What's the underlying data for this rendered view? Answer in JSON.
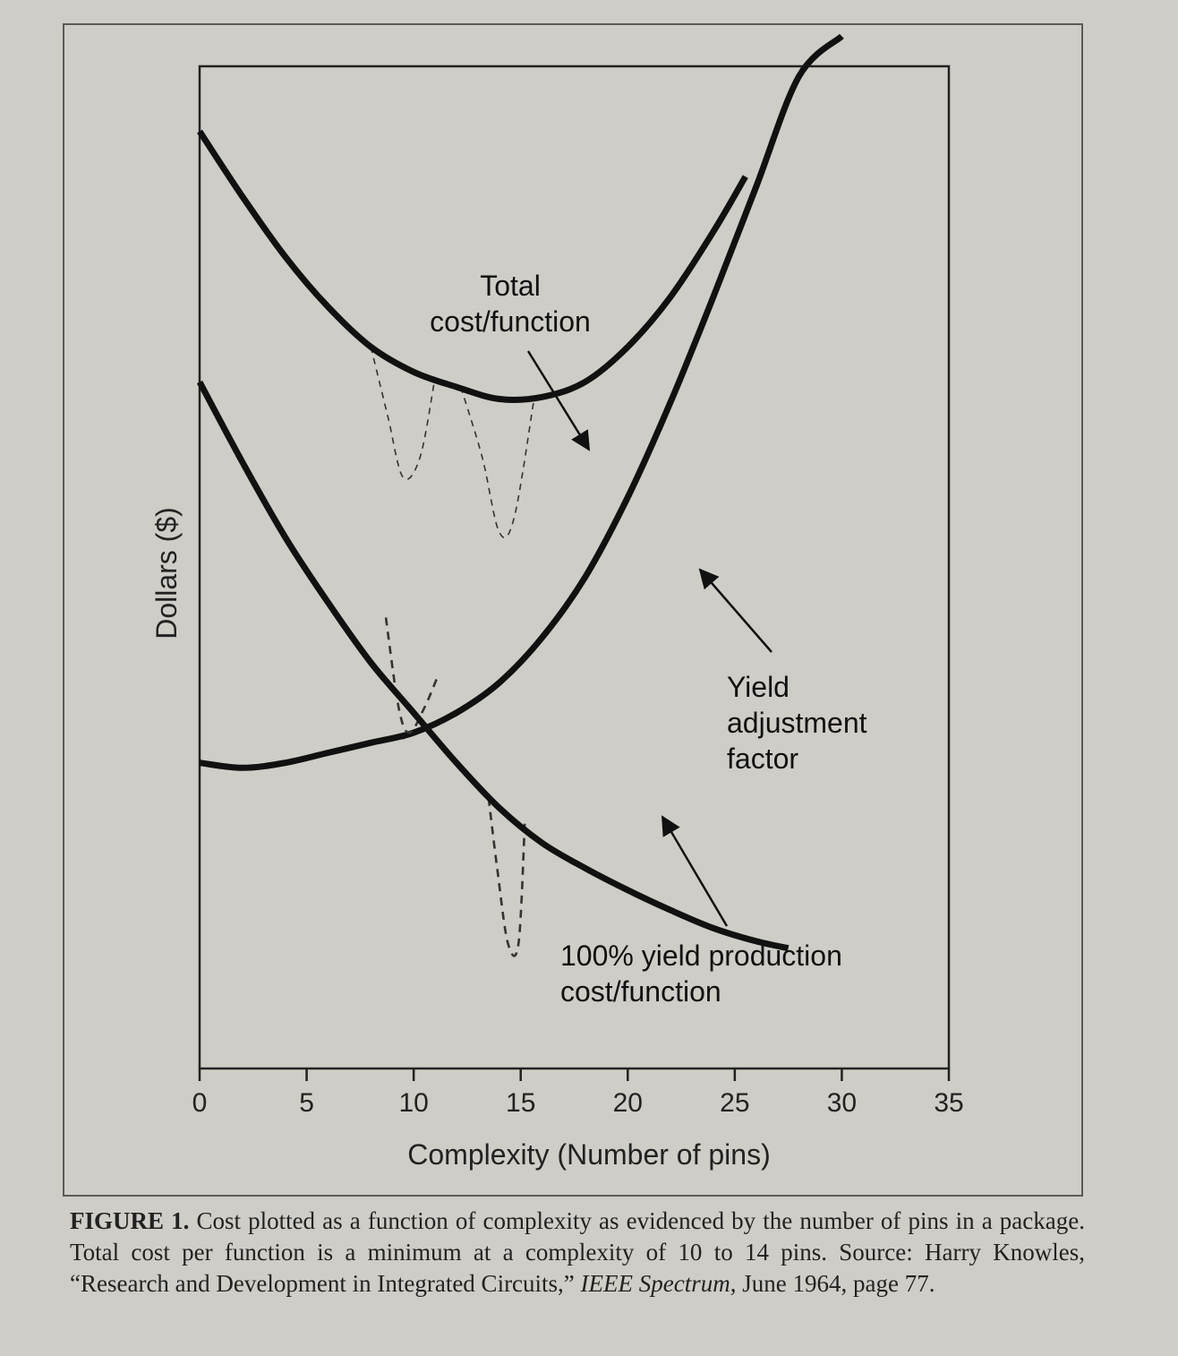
{
  "chart_data": {
    "type": "line",
    "xlabel": "Complexity (Number of pins)",
    "ylabel": "Dollars ($)",
    "xlim": [
      0,
      35
    ],
    "ylim": [
      0,
      10
    ],
    "xticks": [
      "0",
      "5",
      "10",
      "15",
      "20",
      "25",
      "30",
      "35"
    ],
    "yticks_shown": false,
    "grid": false,
    "series": [
      {
        "name": "Total cost/function",
        "points": [
          [
            0,
            9.35
          ],
          [
            2,
            8.7
          ],
          [
            4,
            8.1
          ],
          [
            6,
            7.6
          ],
          [
            8,
            7.2
          ],
          [
            10,
            6.95
          ],
          [
            12,
            6.8
          ],
          [
            14,
            6.68
          ],
          [
            16,
            6.7
          ],
          [
            18,
            6.85
          ],
          [
            20,
            7.2
          ],
          [
            22,
            7.7
          ],
          [
            24,
            8.35
          ],
          [
            25.5,
            8.9
          ]
        ],
        "dashed_dips": [
          [
            [
              8,
              7.2
            ],
            [
              8.8,
              6.5
            ],
            [
              9.5,
              5.9
            ],
            [
              10.3,
              6.1
            ],
            [
              11,
              6.9
            ]
          ],
          [
            [
              12.2,
              6.8
            ],
            [
              13.2,
              6.1
            ],
            [
              14,
              5.35
            ],
            [
              14.7,
              5.5
            ],
            [
              15.6,
              6.65
            ]
          ]
        ]
      },
      {
        "name": "Yield adjustment factor",
        "points": [
          [
            0,
            3.05
          ],
          [
            2,
            3.0
          ],
          [
            4,
            3.05
          ],
          [
            6,
            3.15
          ],
          [
            8,
            3.25
          ],
          [
            10,
            3.35
          ],
          [
            12,
            3.55
          ],
          [
            14,
            3.85
          ],
          [
            16,
            4.3
          ],
          [
            18,
            4.9
          ],
          [
            20,
            5.7
          ],
          [
            22,
            6.65
          ],
          [
            24,
            7.7
          ],
          [
            26,
            8.8
          ],
          [
            28,
            9.9
          ],
          [
            30,
            10.3
          ]
        ],
        "dashed_dips": [
          [
            [
              9.2,
              3.3
            ],
            [
              9.6,
              3.3
            ],
            [
              10,
              3.35
            ],
            [
              10.2,
              3.35
            ]
          ]
        ]
      },
      {
        "name": "100% yield production cost/function",
        "points": [
          [
            0,
            6.85
          ],
          [
            2,
            6.05
          ],
          [
            4,
            5.3
          ],
          [
            6,
            4.65
          ],
          [
            8,
            4.05
          ],
          [
            10,
            3.55
          ],
          [
            12,
            3.05
          ],
          [
            14,
            2.6
          ],
          [
            16,
            2.25
          ],
          [
            18,
            2.0
          ],
          [
            20,
            1.78
          ],
          [
            22,
            1.58
          ],
          [
            24,
            1.4
          ],
          [
            26,
            1.27
          ],
          [
            27.5,
            1.2
          ]
        ],
        "dashed_dips": [
          [
            [
              8.7,
              4.5
            ],
            [
              9.3,
              3.6
            ],
            [
              9.8,
              3.35
            ],
            [
              10.5,
              3.6
            ],
            [
              11.1,
              3.9
            ]
          ],
          [
            [
              13.5,
              2.7
            ],
            [
              13.9,
              2.0
            ],
            [
              14.4,
              1.25
            ],
            [
              14.9,
              1.25
            ],
            [
              15.2,
              2.5
            ]
          ]
        ]
      }
    ],
    "annotations": [
      {
        "lines": [
          "Total",
          "cost/function"
        ],
        "target_series": "Total cost/function"
      },
      {
        "lines": [
          "Yield",
          "adjustment",
          "factor"
        ],
        "target_series": "Yield adjustment factor"
      },
      {
        "lines": [
          "100% yield production",
          "cost/function"
        ],
        "target_series": "100% yield production cost/function"
      }
    ]
  },
  "caption": {
    "label": "FIGURE 1.",
    "text_before": " Cost plotted as a function of complexity as evidenced by the number of pins in a package. Total cost per function is a minimum at a complexity of 10 to 14 pins. Source: Harry Knowles, “Research and Development in Integrated Circuits,” ",
    "journal": "IEEE Spectrum",
    "text_after": ", June 1964, page 77."
  }
}
